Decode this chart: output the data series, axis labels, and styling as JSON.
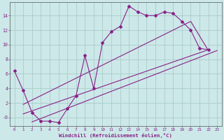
{
  "background_color": "#cce8e8",
  "grid_color": "#aacccc",
  "line_color": "#882288",
  "xlabel": "Windchill (Refroidissement éolien,°C)",
  "xlim": [
    -0.5,
    23.5
  ],
  "ylim": [
    -1.2,
    15.8
  ],
  "yticks": [
    0,
    2,
    4,
    6,
    8,
    10,
    12,
    14
  ],
  "ytick_labels": [
    "-0",
    "2",
    "4",
    "6",
    "8",
    "10",
    "12",
    "14"
  ],
  "xticks": [
    0,
    1,
    2,
    3,
    4,
    5,
    6,
    7,
    8,
    9,
    10,
    11,
    12,
    13,
    14,
    15,
    16,
    17,
    18,
    19,
    20,
    21,
    22,
    23
  ],
  "line1_x": [
    0,
    1,
    2,
    3,
    4,
    5,
    6,
    7,
    8,
    9,
    10,
    11,
    12,
    13,
    14,
    15,
    16,
    17,
    18,
    19,
    20,
    21,
    22
  ],
  "line1_y": [
    6.4,
    3.7,
    0.7,
    -0.5,
    -0.5,
    -0.7,
    1.2,
    3.0,
    8.5,
    4.0,
    10.3,
    11.8,
    12.5,
    15.3,
    14.5,
    14.0,
    14.0,
    14.5,
    14.3,
    13.2,
    12.0,
    9.5,
    9.3
  ],
  "line2_x": [
    1,
    22
  ],
  "line2_y": [
    0.5,
    9.3
  ],
  "line3_x": [
    2,
    23
  ],
  "line3_y": [
    -0.6,
    9.2
  ],
  "line4_x": [
    1,
    20,
    22
  ],
  "line4_y": [
    1.8,
    13.2,
    9.2
  ]
}
